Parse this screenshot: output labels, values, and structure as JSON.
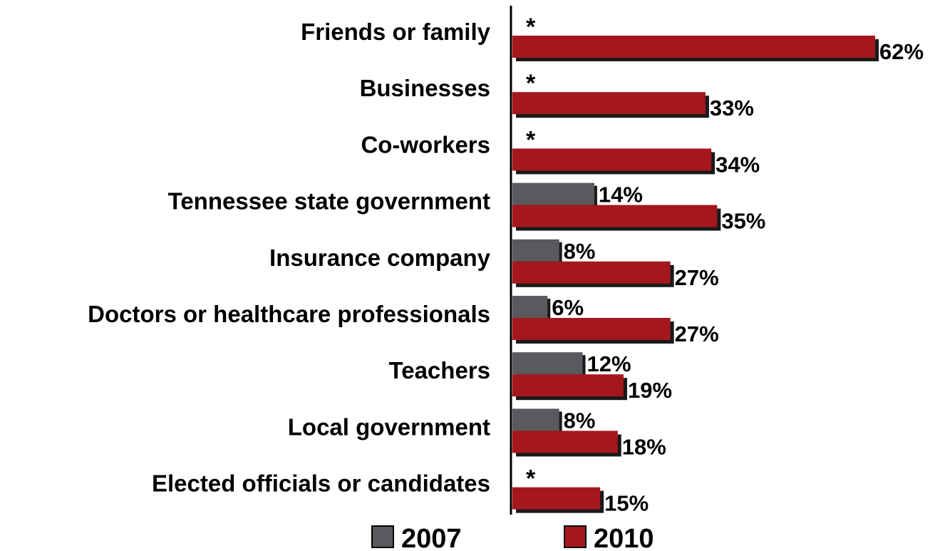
{
  "colors": {
    "s2007": "#5a5a5e",
    "s2010": "#a4171c",
    "shadow": "#1a1a1a",
    "axis": "#000000"
  },
  "chart_data": {
    "type": "bar",
    "orientation": "horizontal",
    "categories": [
      "Friends or family",
      "Businesses",
      "Co-workers",
      "Tennessee state government",
      "Insurance company",
      "Doctors or healthcare professionals",
      "Teachers",
      "Local government",
      "Elected officials or candidates"
    ],
    "series": [
      {
        "name": "2007",
        "values": [
          null,
          null,
          null,
          14,
          8,
          6,
          12,
          8,
          null
        ],
        "labels": [
          "*",
          "*",
          "*",
          "14%",
          "8%",
          "6%",
          "12%",
          "8%",
          "*"
        ]
      },
      {
        "name": "2010",
        "values": [
          62,
          33,
          34,
          35,
          27,
          27,
          19,
          18,
          15
        ],
        "labels": [
          "62%",
          "33%",
          "34%",
          "35%",
          "27%",
          "27%",
          "19%",
          "18%",
          "15%"
        ]
      }
    ],
    "xlim": [
      0,
      62
    ],
    "grid": false,
    "legend_position": "bottom"
  }
}
